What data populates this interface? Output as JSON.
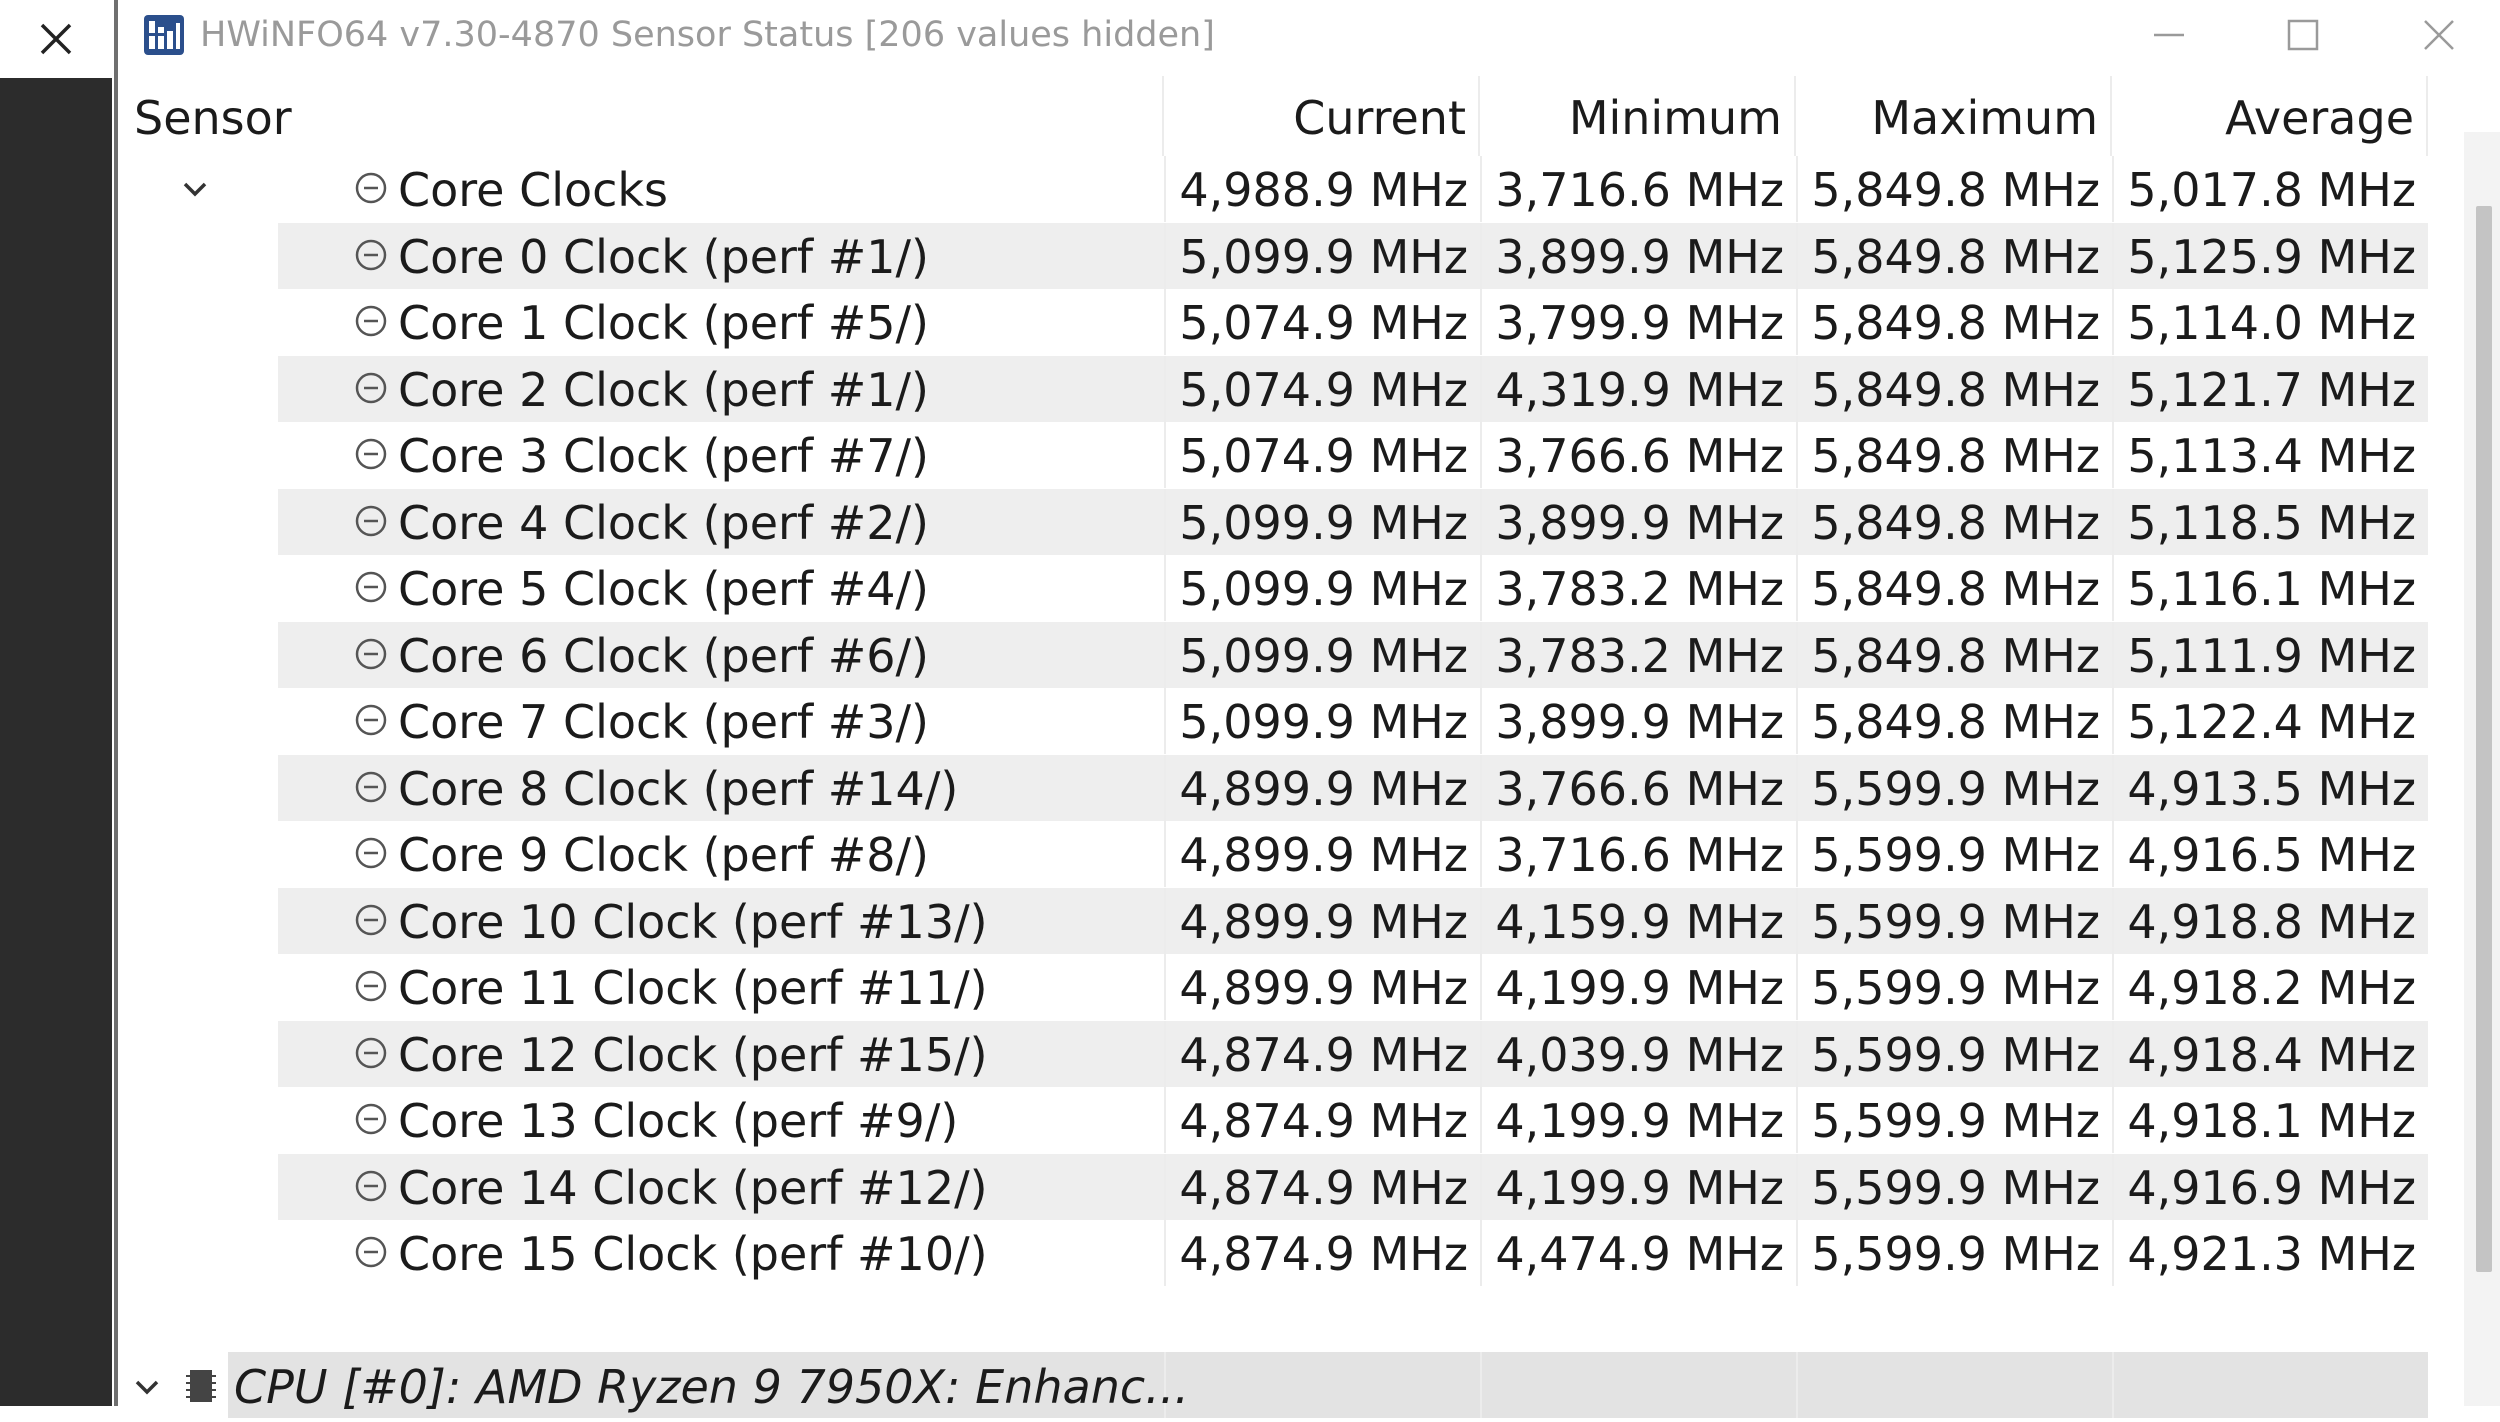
{
  "window": {
    "title": "HWiNFO64 v7.30-4870 Sensor Status [206 values hidden]",
    "app_icon": "hwinfo-app-icon",
    "controls": [
      "minimize-icon",
      "maximize-icon",
      "close-icon"
    ]
  },
  "left_panel": {
    "close_icon": "close-icon"
  },
  "columns": {
    "sensor": "Sensor",
    "current": "Current",
    "minimum": "Minimum",
    "maximum": "Maximum",
    "average": "Average"
  },
  "rows": [
    {
      "label": "Core Clocks",
      "current": "4,988.9 MHz",
      "minimum": "3,716.6 MHz",
      "maximum": "5,849.8 MHz",
      "average": "5,017.8 MHz",
      "group": true
    },
    {
      "label": "Core 0 Clock (perf #1/)",
      "current": "5,099.9 MHz",
      "minimum": "3,899.9 MHz",
      "maximum": "5,849.8 MHz",
      "average": "5,125.9 MHz"
    },
    {
      "label": "Core 1 Clock (perf #5/)",
      "current": "5,074.9 MHz",
      "minimum": "3,799.9 MHz",
      "maximum": "5,849.8 MHz",
      "average": "5,114.0 MHz"
    },
    {
      "label": "Core 2 Clock (perf #1/)",
      "current": "5,074.9 MHz",
      "minimum": "4,319.9 MHz",
      "maximum": "5,849.8 MHz",
      "average": "5,121.7 MHz"
    },
    {
      "label": "Core 3 Clock (perf #7/)",
      "current": "5,074.9 MHz",
      "minimum": "3,766.6 MHz",
      "maximum": "5,849.8 MHz",
      "average": "5,113.4 MHz"
    },
    {
      "label": "Core 4 Clock (perf #2/)",
      "current": "5,099.9 MHz",
      "minimum": "3,899.9 MHz",
      "maximum": "5,849.8 MHz",
      "average": "5,118.5 MHz"
    },
    {
      "label": "Core 5 Clock (perf #4/)",
      "current": "5,099.9 MHz",
      "minimum": "3,783.2 MHz",
      "maximum": "5,849.8 MHz",
      "average": "5,116.1 MHz"
    },
    {
      "label": "Core 6 Clock (perf #6/)",
      "current": "5,099.9 MHz",
      "minimum": "3,783.2 MHz",
      "maximum": "5,849.8 MHz",
      "average": "5,111.9 MHz"
    },
    {
      "label": "Core 7 Clock (perf #3/)",
      "current": "5,099.9 MHz",
      "minimum": "3,899.9 MHz",
      "maximum": "5,849.8 MHz",
      "average": "5,122.4 MHz"
    },
    {
      "label": "Core 8 Clock (perf #14/)",
      "current": "4,899.9 MHz",
      "minimum": "3,766.6 MHz",
      "maximum": "5,599.9 MHz",
      "average": "4,913.5 MHz"
    },
    {
      "label": "Core 9 Clock (perf #8/)",
      "current": "4,899.9 MHz",
      "minimum": "3,716.6 MHz",
      "maximum": "5,599.9 MHz",
      "average": "4,916.5 MHz"
    },
    {
      "label": "Core 10 Clock (perf #13/)",
      "current": "4,899.9 MHz",
      "minimum": "4,159.9 MHz",
      "maximum": "5,599.9 MHz",
      "average": "4,918.8 MHz"
    },
    {
      "label": "Core 11 Clock (perf #11/)",
      "current": "4,899.9 MHz",
      "minimum": "4,199.9 MHz",
      "maximum": "5,599.9 MHz",
      "average": "4,918.2 MHz"
    },
    {
      "label": "Core 12 Clock (perf #15/)",
      "current": "4,874.9 MHz",
      "minimum": "4,039.9 MHz",
      "maximum": "5,599.9 MHz",
      "average": "4,918.4 MHz"
    },
    {
      "label": "Core 13 Clock (perf #9/)",
      "current": "4,874.9 MHz",
      "minimum": "4,199.9 MHz",
      "maximum": "5,599.9 MHz",
      "average": "4,918.1 MHz"
    },
    {
      "label": "Core 14 Clock (perf #12/)",
      "current": "4,874.9 MHz",
      "minimum": "4,199.9 MHz",
      "maximum": "5,599.9 MHz",
      "average": "4,916.9 MHz"
    },
    {
      "label": "Core 15 Clock (perf #10/)",
      "current": "4,874.9 MHz",
      "minimum": "4,474.9 MHz",
      "maximum": "5,599.9 MHz",
      "average": "4,921.3 MHz"
    }
  ],
  "next_group": {
    "label": "CPU [#0]: AMD Ryzen 9 7950X: Enhanc...",
    "icon": "cpu-chip-icon"
  },
  "colors": {
    "row_alt": "#eeeeee",
    "group_header": "#e3e3e3",
    "left_strip": "#2c2c2c",
    "title_text": "#9a9a9a"
  }
}
